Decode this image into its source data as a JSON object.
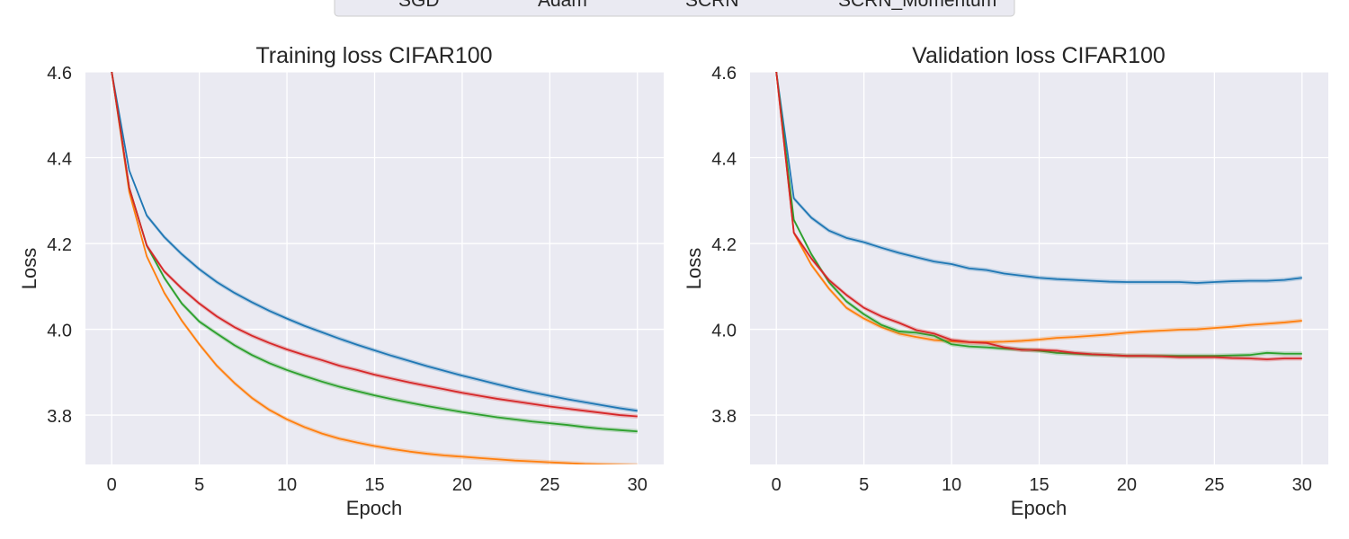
{
  "legend": {
    "entries": [
      {
        "label": "SGD",
        "color": "#1f77b4"
      },
      {
        "label": "Adam",
        "color": "#ff7f0e"
      },
      {
        "label": "SCRN",
        "color": "#2ca02c"
      },
      {
        "label": "SCRN_Momentum",
        "color": "#d62728"
      }
    ]
  },
  "chart_data": [
    {
      "type": "line",
      "title": "Training loss CIFAR100",
      "xlabel": "Epoch",
      "ylabel": "Loss",
      "xlim": [
        -1.5,
        31.5
      ],
      "ylim": [
        3.685,
        4.6
      ],
      "xticks": [
        0,
        5,
        10,
        15,
        20,
        25,
        30
      ],
      "yticks": [
        3.8,
        4.0,
        4.2,
        4.4,
        4.6
      ],
      "ytick_labels": [
        "3.8",
        "4.0",
        "4.2",
        "4.4",
        "4.6"
      ],
      "grid": true,
      "x": [
        0,
        1,
        2,
        3,
        4,
        5,
        6,
        7,
        8,
        9,
        10,
        11,
        12,
        13,
        14,
        15,
        16,
        17,
        18,
        19,
        20,
        21,
        22,
        23,
        24,
        25,
        26,
        27,
        28,
        29,
        30
      ],
      "series": [
        {
          "name": "SGD",
          "color": "#1f77b4",
          "values": [
            4.6,
            4.37,
            4.265,
            4.215,
            4.175,
            4.14,
            4.11,
            4.085,
            4.063,
            4.043,
            4.025,
            4.008,
            3.993,
            3.978,
            3.964,
            3.951,
            3.938,
            3.926,
            3.914,
            3.903,
            3.892,
            3.882,
            3.872,
            3.862,
            3.853,
            3.845,
            3.837,
            3.83,
            3.823,
            3.816,
            3.81
          ]
        },
        {
          "name": "Adam",
          "color": "#ff7f0e",
          "values": [
            4.6,
            4.32,
            4.17,
            4.085,
            4.02,
            3.965,
            3.915,
            3.875,
            3.84,
            3.812,
            3.79,
            3.772,
            3.757,
            3.745,
            3.736,
            3.728,
            3.721,
            3.715,
            3.71,
            3.706,
            3.703,
            3.7,
            3.697,
            3.694,
            3.692,
            3.69,
            3.688,
            3.686,
            3.685,
            3.684,
            3.683
          ]
        },
        {
          "name": "SCRN",
          "color": "#2ca02c",
          "values": [
            4.6,
            4.33,
            4.195,
            4.12,
            4.06,
            4.018,
            3.99,
            3.963,
            3.94,
            3.921,
            3.905,
            3.891,
            3.878,
            3.866,
            3.856,
            3.846,
            3.837,
            3.829,
            3.821,
            3.814,
            3.807,
            3.801,
            3.795,
            3.79,
            3.785,
            3.781,
            3.777,
            3.772,
            3.768,
            3.765,
            3.762
          ]
        },
        {
          "name": "SCRN_Momentum",
          "color": "#d62728",
          "values": [
            4.6,
            4.33,
            4.195,
            4.135,
            4.095,
            4.06,
            4.03,
            4.005,
            3.985,
            3.968,
            3.953,
            3.94,
            3.928,
            3.915,
            3.905,
            3.894,
            3.885,
            3.876,
            3.868,
            3.86,
            3.852,
            3.845,
            3.838,
            3.832,
            3.826,
            3.82,
            3.815,
            3.81,
            3.805,
            3.8,
            3.797
          ]
        }
      ]
    },
    {
      "type": "line",
      "title": "Validation loss CIFAR100",
      "xlabel": "Epoch",
      "ylabel": "Loss",
      "xlim": [
        -1.5,
        31.5
      ],
      "ylim": [
        3.685,
        4.6
      ],
      "xticks": [
        0,
        5,
        10,
        15,
        20,
        25,
        30
      ],
      "yticks": [
        3.8,
        4.0,
        4.2,
        4.4,
        4.6
      ],
      "ytick_labels": [
        "3.8",
        "4.0",
        "4.2",
        "4.4",
        "4.6"
      ],
      "grid": true,
      "x": [
        0,
        1,
        2,
        3,
        4,
        5,
        6,
        7,
        8,
        9,
        10,
        11,
        12,
        13,
        14,
        15,
        16,
        17,
        18,
        19,
        20,
        21,
        22,
        23,
        24,
        25,
        26,
        27,
        28,
        29,
        30
      ],
      "series": [
        {
          "name": "SGD",
          "color": "#1f77b4",
          "values": [
            4.6,
            4.305,
            4.26,
            4.23,
            4.213,
            4.203,
            4.19,
            4.178,
            4.168,
            4.158,
            4.152,
            4.142,
            4.138,
            4.13,
            4.125,
            4.12,
            4.117,
            4.115,
            4.113,
            4.111,
            4.11,
            4.11,
            4.11,
            4.11,
            4.108,
            4.11,
            4.112,
            4.113,
            4.113,
            4.115,
            4.12
          ]
        },
        {
          "name": "Adam",
          "color": "#ff7f0e",
          "values": [
            4.6,
            4.225,
            4.15,
            4.095,
            4.05,
            4.025,
            4.005,
            3.99,
            3.982,
            3.975,
            3.972,
            3.97,
            3.97,
            3.971,
            3.973,
            3.976,
            3.98,
            3.982,
            3.985,
            3.988,
            3.992,
            3.995,
            3.997,
            3.999,
            4.0,
            4.003,
            4.006,
            4.01,
            4.013,
            4.016,
            4.02
          ]
        },
        {
          "name": "SCRN",
          "color": "#2ca02c",
          "values": [
            4.6,
            4.255,
            4.175,
            4.11,
            4.065,
            4.035,
            4.01,
            3.995,
            3.992,
            3.985,
            3.965,
            3.96,
            3.958,
            3.955,
            3.953,
            3.95,
            3.945,
            3.943,
            3.941,
            3.94,
            3.938,
            3.938,
            3.938,
            3.938,
            3.938,
            3.938,
            3.939,
            3.94,
            3.945,
            3.943,
            3.943
          ]
        },
        {
          "name": "SCRN_Momentum",
          "color": "#d62728",
          "values": [
            4.6,
            4.225,
            4.165,
            4.115,
            4.08,
            4.05,
            4.03,
            4.015,
            3.998,
            3.99,
            3.975,
            3.97,
            3.968,
            3.958,
            3.952,
            3.952,
            3.95,
            3.945,
            3.942,
            3.94,
            3.938,
            3.938,
            3.937,
            3.935,
            3.935,
            3.935,
            3.933,
            3.932,
            3.93,
            3.932,
            3.932
          ]
        }
      ]
    }
  ]
}
